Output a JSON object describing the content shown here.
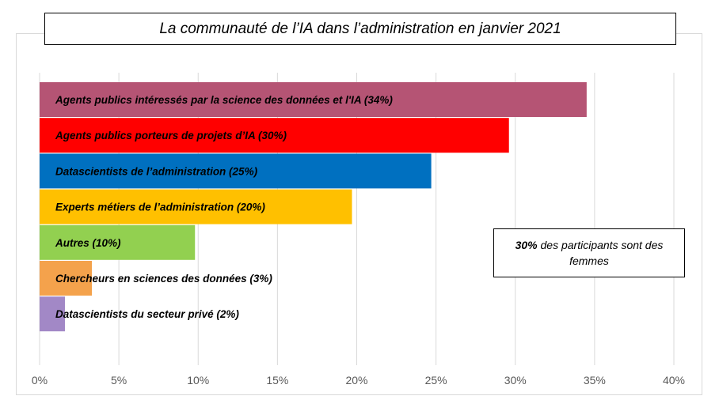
{
  "chart_data": {
    "type": "bar",
    "orientation": "horizontal",
    "title": "La communauté de l’IA dans l’administration en janvier 2021",
    "categories": [
      "Agents publics intéressés par la science des données et l'IA (34%)",
      "Agents publics porteurs de projets d’IA (30%)",
      "Datascientists de l’administration (25%)",
      "Experts métiers de l’administration (20%)",
      "Autres (10%)",
      "Chercheurs en sciences des données (3%)",
      "Datascientists du secteur privé (2%)"
    ],
    "values": [
      0.345,
      0.296,
      0.247,
      0.197,
      0.098,
      0.033,
      0.016
    ],
    "colors": [
      "#b55474",
      "#ff0000",
      "#0070c0",
      "#ffc000",
      "#92d050",
      "#f4a24c",
      "#a288c6"
    ],
    "xlim": [
      0,
      0.4
    ],
    "xticks": [
      "0%",
      "5%",
      "10%",
      "15%",
      "20%",
      "25%",
      "30%",
      "35%",
      "40%"
    ],
    "grid": true,
    "legend": "none"
  },
  "annotation": {
    "bold": "30%",
    "text": " des participants sont des femmes"
  }
}
